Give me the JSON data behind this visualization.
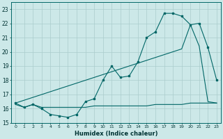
{
  "xlabel": "Humidex (Indice chaleur)",
  "bg_color": "#cce8e8",
  "line_color": "#006666",
  "xlim": [
    -0.5,
    23.5
  ],
  "ylim": [
    15,
    23.5
  ],
  "yticks": [
    15,
    16,
    17,
    18,
    19,
    20,
    21,
    22,
    23
  ],
  "xticks": [
    0,
    1,
    2,
    3,
    4,
    5,
    6,
    7,
    8,
    9,
    10,
    11,
    12,
    13,
    14,
    15,
    16,
    17,
    18,
    19,
    20,
    21,
    22,
    23
  ],
  "line1_x": [
    0,
    1,
    2,
    3,
    4,
    5,
    6,
    7,
    8,
    9,
    10,
    11,
    12,
    13,
    14,
    15,
    16,
    17,
    18,
    19,
    20,
    21,
    22,
    23
  ],
  "line1_y": [
    16.4,
    16.1,
    16.3,
    16.0,
    15.6,
    15.5,
    15.4,
    15.6,
    16.5,
    16.7,
    18.0,
    19.0,
    18.2,
    18.3,
    19.3,
    21.0,
    21.4,
    22.7,
    22.7,
    22.5,
    21.9,
    22.0,
    20.3,
    18.0
  ],
  "line2_x": [
    0,
    1,
    2,
    3,
    4,
    5,
    6,
    7,
    8,
    9,
    10,
    11,
    12,
    13,
    14,
    15,
    16,
    17,
    18,
    19,
    20,
    21,
    22,
    23
  ],
  "line2_y": [
    16.3,
    16.1,
    16.3,
    16.1,
    16.1,
    16.1,
    16.1,
    16.1,
    16.1,
    16.2,
    16.2,
    16.2,
    16.2,
    16.2,
    16.2,
    16.2,
    16.3,
    16.3,
    16.3,
    16.3,
    16.4,
    16.4,
    16.4,
    16.4
  ],
  "line3_x": [
    0,
    1,
    2,
    3,
    4,
    5,
    6,
    7,
    8,
    9,
    10,
    11,
    12,
    13,
    14,
    15,
    16,
    17,
    18,
    19,
    20,
    21,
    22,
    23
  ],
  "line3_y": [
    16.4,
    16.6,
    16.8,
    17.0,
    17.2,
    17.4,
    17.6,
    17.8,
    18.0,
    18.2,
    18.4,
    18.6,
    18.8,
    19.0,
    19.2,
    19.4,
    19.6,
    19.8,
    20.0,
    20.2,
    21.9,
    20.4,
    16.5,
    16.4
  ]
}
